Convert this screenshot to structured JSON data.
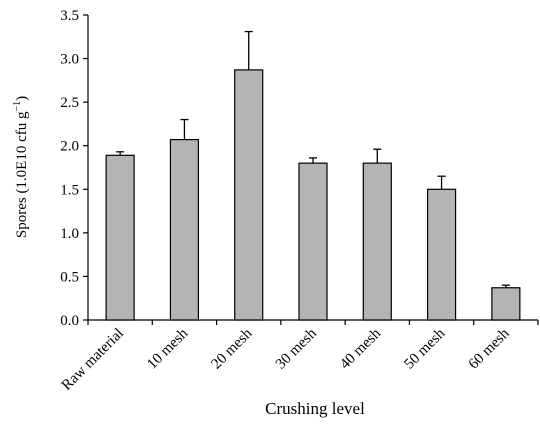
{
  "chart_data": {
    "type": "bar",
    "categories": [
      "Raw material",
      "10 mesh",
      "20 mesh",
      "30 mesh",
      "40 mesh",
      "50 mesh",
      "60 mesh"
    ],
    "values": [
      1.89,
      2.07,
      2.87,
      1.8,
      1.8,
      1.5,
      0.37
    ],
    "errors": [
      0.04,
      0.23,
      0.44,
      0.06,
      0.16,
      0.15,
      0.03
    ],
    "xlabel": "Crushing level",
    "ylabel_main": "Spores (1.0E10 cfu g",
    "ylabel_sup": "−1",
    "ylabel_close": ")",
    "ylim": [
      0,
      3.5
    ],
    "yticks": [
      "0.0",
      "0.5",
      "1.0",
      "1.5",
      "2.0",
      "2.5",
      "3.0",
      "3.5"
    ],
    "grid": false,
    "bar_color": "#b4b4b4",
    "edge_color": "#000000"
  }
}
